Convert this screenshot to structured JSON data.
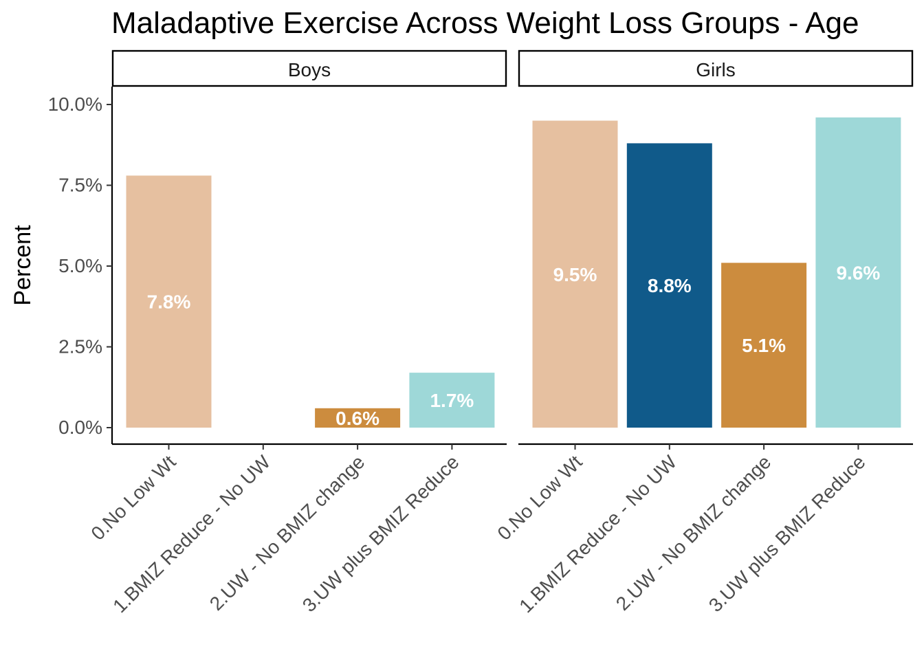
{
  "chart_data": {
    "type": "bar",
    "title": "Maladaptive Exercise Across Weight Loss Groups - Age",
    "ylabel": "Percent",
    "xlabel": "",
    "ylim": [
      0,
      10.5
    ],
    "yticks": [
      0,
      2.5,
      5.0,
      7.5,
      10.0
    ],
    "ytick_labels": [
      "0.0%",
      "2.5%",
      "5.0%",
      "7.5%",
      "10.0%"
    ],
    "grid": false,
    "legend": "none",
    "categories": [
      "0.No Low Wt",
      "1.BMIZ Reduce - No UW",
      "2.UW - No BMIZ change",
      "3.UW plus BMIZ Reduce"
    ],
    "colors": [
      "#E6C0A0",
      "#105A8A",
      "#CC8C3E",
      "#9ED8D8"
    ],
    "facets": [
      {
        "name": "Boys",
        "values": [
          7.8,
          null,
          0.6,
          1.7
        ],
        "labels": [
          "7.8%",
          "",
          "0.6%",
          "1.7%"
        ]
      },
      {
        "name": "Girls",
        "values": [
          9.5,
          8.8,
          5.1,
          9.6
        ],
        "labels": [
          "9.5%",
          "8.8%",
          "5.1%",
          "9.6%"
        ]
      }
    ]
  }
}
